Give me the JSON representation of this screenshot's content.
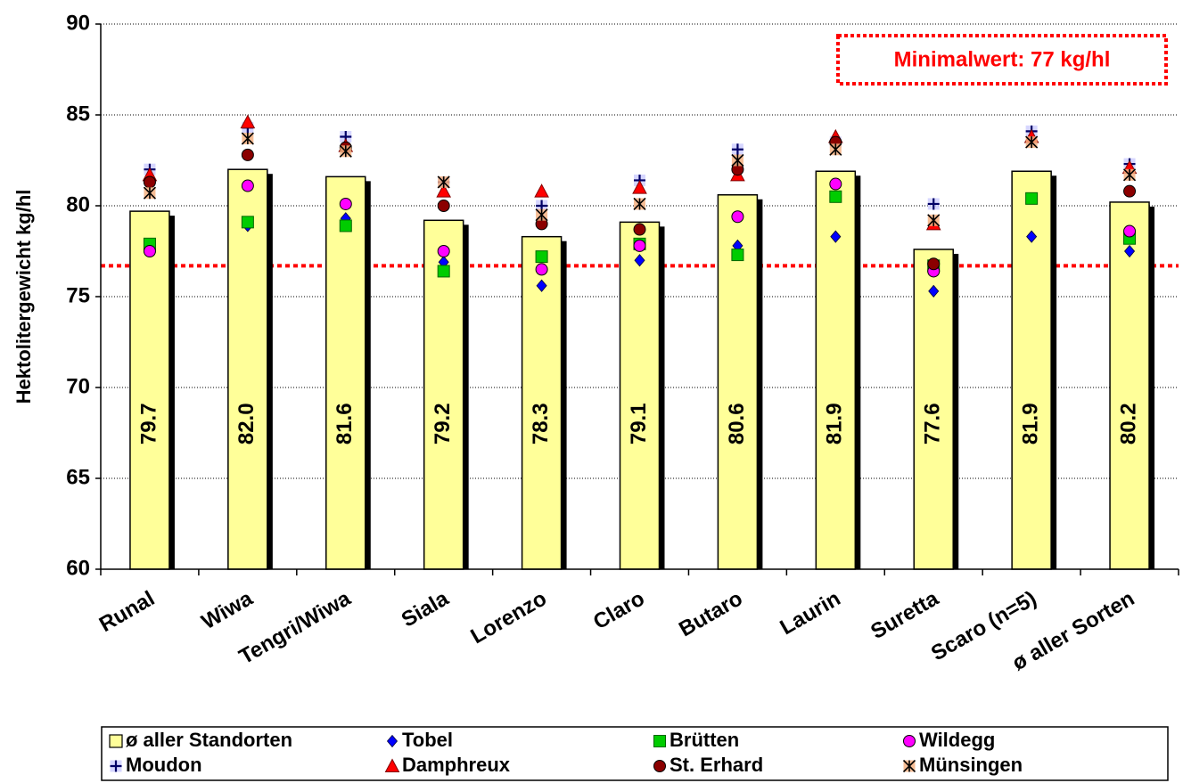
{
  "chart_data": {
    "type": "bar",
    "ylabel": "Hektolitergewicht kg/hl",
    "ylim": [
      60,
      90
    ],
    "yticks": [
      60,
      65,
      70,
      75,
      80,
      85,
      90
    ],
    "grid": true,
    "categories": [
      "Runal",
      "Wiwa",
      "Tengri/Wiwa",
      "Siala",
      "Lorenzo",
      "Claro",
      "Butaro",
      "Laurin",
      "Suretta",
      "Scaro (n=5)",
      "ø aller Sorten"
    ],
    "bar_series": {
      "name": "ø aller Standorten",
      "values": [
        79.7,
        82.0,
        81.6,
        79.2,
        78.3,
        79.1,
        80.6,
        81.9,
        77.6,
        81.9,
        80.2
      ],
      "labels": [
        "79.7",
        "82.0",
        "81.6",
        "79.2",
        "78.3",
        "79.1",
        "80.6",
        "81.9",
        "77.6",
        "81.9",
        "80.2"
      ],
      "color": "#ffff99"
    },
    "series": [
      {
        "name": "Tobel",
        "marker": "diamond",
        "color": "#0000ff",
        "values": [
          77.8,
          78.9,
          79.3,
          76.9,
          75.6,
          77.0,
          77.8,
          78.3,
          75.3,
          78.3,
          77.5
        ]
      },
      {
        "name": "Brütten",
        "marker": "square",
        "color": "#00cc00",
        "values": [
          77.9,
          79.1,
          78.9,
          76.4,
          77.2,
          77.9,
          77.3,
          80.5,
          76.7,
          80.4,
          78.2
        ]
      },
      {
        "name": "Wildegg",
        "marker": "circle",
        "color": "#ff00ff",
        "values": [
          77.5,
          81.1,
          80.1,
          77.5,
          76.5,
          77.8,
          79.4,
          81.2,
          76.4,
          null,
          78.6
        ]
      },
      {
        "name": "Moudon",
        "marker": "plus",
        "color": "#000066",
        "values": [
          82.0,
          84.3,
          83.8,
          81.3,
          80.0,
          81.4,
          83.1,
          83.5,
          80.1,
          84.1,
          82.3
        ]
      },
      {
        "name": "Damphreux",
        "marker": "triangle",
        "color": "#ff0000",
        "values": [
          81.7,
          84.6,
          83.3,
          80.8,
          80.8,
          81.0,
          81.7,
          83.8,
          79.0,
          83.8,
          82.1
        ]
      },
      {
        "name": "St. Erhard",
        "marker": "circle",
        "color": "#8b0000",
        "values": [
          81.3,
          82.8,
          83.2,
          80.0,
          79.0,
          78.7,
          82.0,
          83.5,
          76.8,
          null,
          80.8
        ]
      },
      {
        "name": "Münsingen",
        "marker": "asterisk",
        "color": "#f4b183",
        "values": [
          80.7,
          83.7,
          83.0,
          81.3,
          79.5,
          80.1,
          82.5,
          83.1,
          79.2,
          83.5,
          81.7
        ]
      }
    ],
    "threshold": {
      "value": 76.7,
      "color": "#ff0000",
      "style": "dotted"
    },
    "annotation": "Minimalwert: 77 kg/hl",
    "legend_placement": "bottom"
  }
}
